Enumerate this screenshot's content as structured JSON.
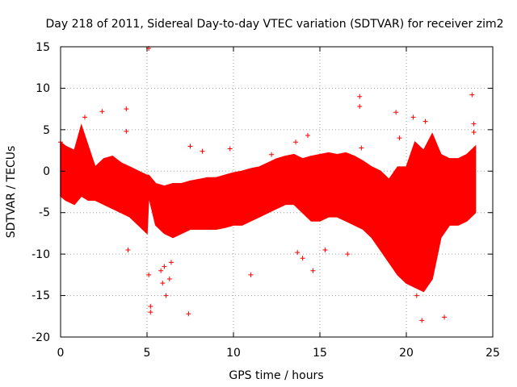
{
  "chart_data": {
    "type": "scatter",
    "title": "Day 218 of 2011, Sidereal Day-to-day VTEC variation (SDTVAR) for receiver zim2",
    "xlabel": "GPS time / hours",
    "ylabel": "SDTVAR / TECUs",
    "xlim": [
      0,
      25
    ],
    "ylim": [
      -20,
      15
    ],
    "xticks": [
      "0",
      "5",
      "10",
      "15",
      "20",
      "25"
    ],
    "yticks": [
      "15",
      "10",
      "5",
      "0",
      "-5",
      "-10",
      "-15",
      "-20"
    ],
    "grid": true,
    "color": "#ff0000",
    "band": {
      "name": "SDTVAR envelope",
      "x": [
        0,
        0.3,
        0.8,
        1.2,
        1.6,
        2.0,
        2.5,
        3.0,
        3.5,
        4.0,
        4.5,
        5.0,
        5.1,
        5.5,
        6.0,
        6.5,
        7.0,
        7.5,
        8.0,
        8.5,
        9.0,
        9.5,
        10.0,
        10.5,
        11.0,
        11.5,
        12.0,
        12.5,
        13.0,
        13.5,
        14.0,
        14.5,
        15.0,
        15.5,
        16.0,
        16.5,
        17.0,
        17.5,
        18.0,
        18.5,
        19.0,
        19.5,
        20.0,
        20.5,
        21.0,
        21.5,
        22.0,
        22.5,
        23.0,
        23.5,
        24.0
      ],
      "upper": [
        3.5,
        3.0,
        2.5,
        5.5,
        3.0,
        0.5,
        1.5,
        1.8,
        1.0,
        0.5,
        0.0,
        -0.5,
        -0.5,
        -1.5,
        -1.8,
        -1.5,
        -1.5,
        -1.2,
        -1.0,
        -0.8,
        -0.8,
        -0.5,
        -0.2,
        0.0,
        0.3,
        0.5,
        1.0,
        1.5,
        1.8,
        2.0,
        1.5,
        1.8,
        2.0,
        2.2,
        2.0,
        2.2,
        1.8,
        1.2,
        0.5,
        0.0,
        -1.0,
        0.5,
        0.5,
        3.5,
        2.5,
        4.5,
        2.0,
        1.5,
        1.5,
        2.0,
        3.0
      ],
      "lower": [
        -3.0,
        -3.5,
        -4.0,
        -3.0,
        -3.5,
        -3.5,
        -4.0,
        -4.5,
        -5.0,
        -5.5,
        -6.5,
        -7.5,
        -3.0,
        -6.5,
        -7.5,
        -8.0,
        -7.5,
        -7.0,
        -7.0,
        -7.0,
        -7.0,
        -6.8,
        -6.5,
        -6.5,
        -6.0,
        -5.5,
        -5.0,
        -4.5,
        -4.0,
        -4.0,
        -5.0,
        -6.0,
        -6.0,
        -5.5,
        -5.5,
        -6.0,
        -6.5,
        -7.0,
        -8.0,
        -9.5,
        -11.0,
        -12.5,
        -13.5,
        -14.0,
        -14.5,
        -13.0,
        -8.0,
        -6.5,
        -6.5,
        -6.0,
        -5.0
      ]
    },
    "outliers": {
      "x": [
        0.0,
        1.4,
        2.4,
        3.8,
        3.8,
        3.9,
        5.1,
        5.2,
        5.1,
        5.2,
        5.8,
        6.1,
        6.3,
        6.4,
        7.4,
        7.5,
        8.2,
        9.8,
        11.0,
        13.6,
        13.7,
        14.0,
        14.3,
        14.6,
        15.3,
        17.3,
        17.3,
        17.4,
        19.4,
        19.6,
        19.9,
        20.4,
        21.1,
        22.2,
        23.8,
        23.9,
        23.9,
        20.9,
        20.6,
        6.0,
        5.9,
        12.2,
        16.6
      ],
      "y": [
        3.5,
        6.5,
        7.2,
        7.5,
        4.8,
        -9.5,
        14.8,
        -16.3,
        -12.5,
        -17.0,
        -12.0,
        -15.0,
        -13.0,
        -11.0,
        -17.2,
        3.0,
        2.4,
        2.7,
        -12.5,
        3.5,
        -9.8,
        -10.5,
        4.3,
        -12.0,
        -9.5,
        9.0,
        7.8,
        2.8,
        7.1,
        4.0,
        -11.5,
        6.5,
        6.0,
        -17.6,
        9.2,
        5.7,
        4.7,
        -18.0,
        -15.0,
        -11.5,
        -13.5,
        2.0,
        -10.0
      ]
    }
  }
}
